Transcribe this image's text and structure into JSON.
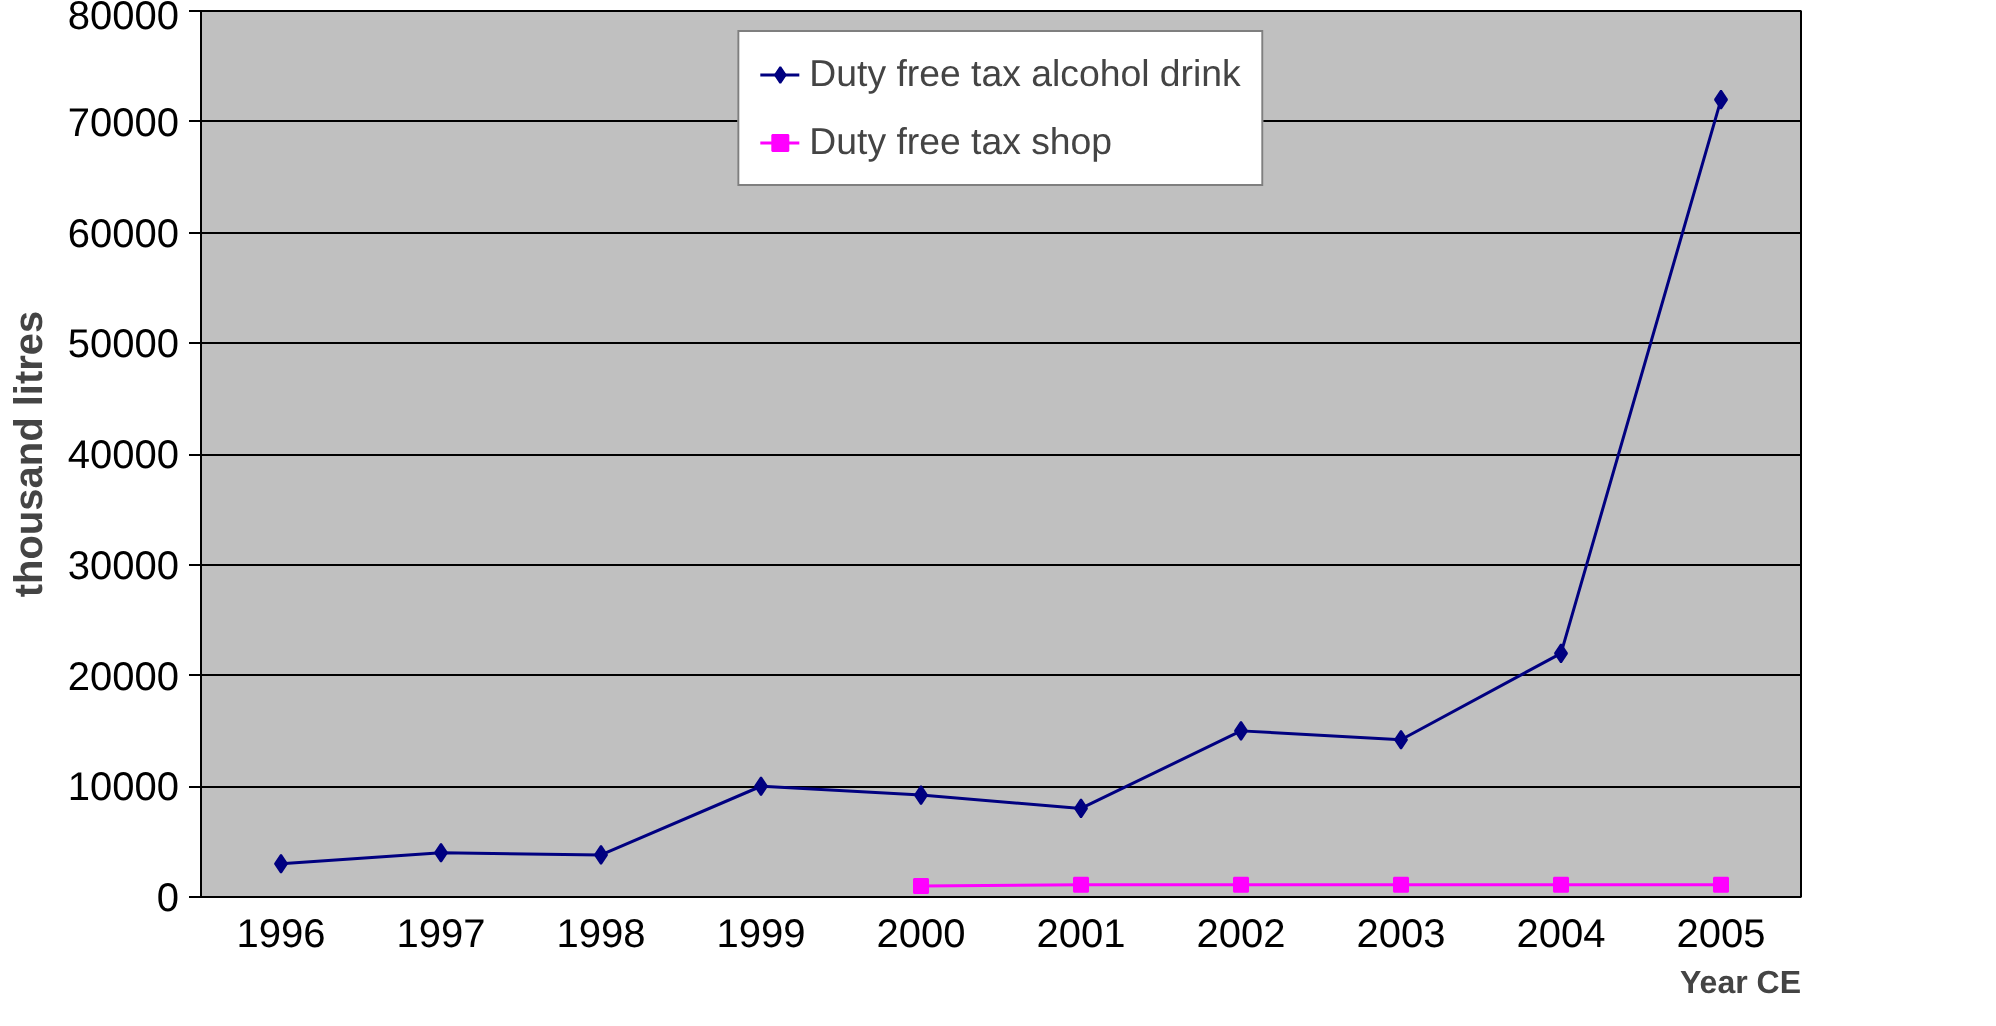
{
  "chart_data": {
    "type": "line",
    "ylabel": "thousand litres",
    "xlabel": "Year CE",
    "categories": [
      "1996",
      "1997",
      "1998",
      "1999",
      "2000",
      "2001",
      "2002",
      "2003",
      "2004",
      "2005"
    ],
    "ylim": [
      0,
      80000
    ],
    "yticks": [
      0,
      10000,
      20000,
      30000,
      40000,
      50000,
      60000,
      70000,
      80000
    ],
    "grid": "y",
    "legend": "top",
    "line_style": "solid",
    "series": [
      {
        "name": "Duty free tax alcohol drink",
        "color": "#000080",
        "marker": "diamond",
        "values": [
          3000,
          4000,
          3800,
          10000,
          9200,
          8000,
          15000,
          14200,
          22000,
          72000
        ]
      },
      {
        "name": "Duty free tax shop",
        "color": "#ff00ff",
        "marker": "square",
        "values": [
          null,
          null,
          null,
          null,
          1000,
          1100,
          1100,
          1100,
          1100,
          1100
        ]
      }
    ]
  }
}
